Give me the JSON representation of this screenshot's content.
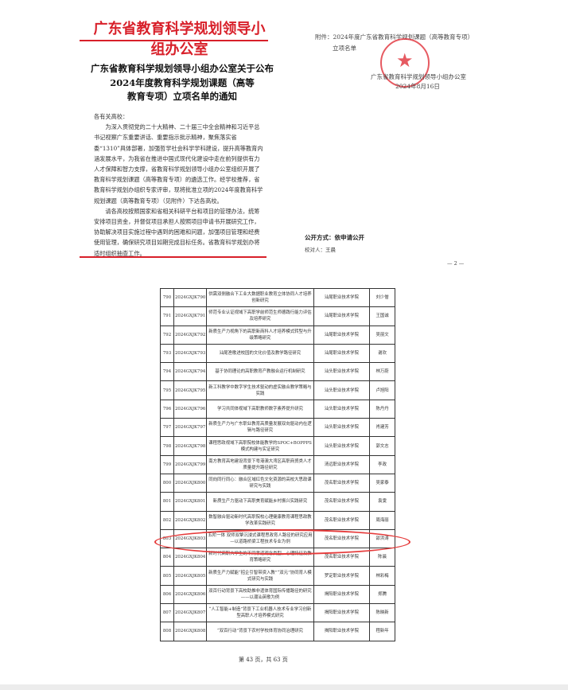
{
  "letterhead": "广东省教育科学规划领导小组办公室",
  "notice_title": [
    "广东省教育科学规划领导小组办公室关于公布",
    "2024年度教育科学规划课题（高等",
    "教育专项）立项名单的通知"
  ],
  "salutation": "各有关高校：",
  "paragraphs": [
    "为深入贯彻党的二十大精神、二十届三中全会精神和习近平总书记视察广东重要讲话、重要指示批示精神，聚焦落实省委“1310”具体部署，加强哲学社会科学学科建设，提升高等教育内涵发展水平，为我省在推进中国式现代化建设中走在前列提供有力人才保障和智力支撑，省教育科学规划领导小组办公室组织开展了教育科学规划课题（高等教育专项）的遴选工作。经学校推荐，省教育科学规划办组织专家评审，现将批准立项的2024年度教育科学规划课题（高等教育专项）（见附件）下达各高校。",
    "请各高校按照国家和省相关科研平台和项目的管理办法，统筹安排项目资金，并督促项目承担人按照项目申请书开展研究工作，协助解决项目实施过程中遇到的困难和问题，加强项目管理和经费使用管理，确保研究项目如期完成目标任务。省教育科学规划办将适时组织抽查工作。"
  ],
  "attachment": [
    "附件：2024年度广东省教育科学规划课题（高等教育专项）",
    "立项名单"
  ],
  "signer": "广东省教育科学规划领导小组办公室",
  "date": "2024年8月16日",
  "disclosure": "公开方式：依申请公开",
  "proofreader": "校对人：王晨",
  "page_num": "— 2 —",
  "rows": [
    [
      "790",
      "2024GXJK790",
      "供需双侧融合下工业大数据职业教育立体协同人才培养创新研究",
      "汕尾职业技术学院",
      "刘少僧"
    ],
    [
      "791",
      "2024GXJK791",
      "师范专业认证视域下高职学前师范生师德践行能力评估及培养研究",
      "汕尾职业技术学院",
      "王国诚"
    ],
    [
      "792",
      "2024GXJK792",
      "新质生产力视角下的高职新商科人才培养模式转型与升级策略研究",
      "汕尾职业技术学院",
      "吴丽文"
    ],
    [
      "793",
      "2024GXJK793",
      "汕尾渔歌进校园的文化价值及教学路径研究",
      "汕尾职业技术学院",
      "谢欢"
    ],
    [
      "794",
      "2024GXJK794",
      "基于协同理论的高职教育产教融合运行机制研究",
      "汕头职业技术学院",
      "林万蔚"
    ],
    [
      "795",
      "2024GXJK795",
      "新工科教学中数字学生技术驱动的虚实融合教学策略与实践",
      "汕头职业技术学院",
      "卢旭阳"
    ],
    [
      "796",
      "2024GXJK796",
      "学习共同体视域下高职教师数字素养提升研究",
      "汕头职业技术学院",
      "陈丹丹"
    ],
    [
      "797",
      "2024GXJK797",
      "新质生产力与广东职业教育高质量发展双向驱动内在逻辑与路径研究",
      "汕头职业技术学院",
      "肖建芳"
    ],
    [
      "798",
      "2024GXJK798",
      "课程思政视域下高职院校体能教学的SPOC+BOPPPS模式构建与实证研究",
      "汕头职业技术学院",
      "郭文志"
    ],
    [
      "799",
      "2024GXJK799",
      "南方教育高地建设背景下粤港澳大湾区高职商贸类人才质量提升路径研究",
      "清远职业技术学院",
      "李政"
    ],
    [
      "800",
      "2024GXJK800",
      "同向同行同心：融合区域红色文化资源的高校大思政课研究与实践",
      "茂名职业技术学院",
      "吴家泰"
    ],
    [
      "801",
      "2024GXJK801",
      "新质生产力驱动下高职美育赋能乡村振兴实践研究",
      "茂名职业技术学院",
      "袁雯"
    ],
    [
      "802",
      "2024GXJK802",
      "数智融合驱动新时代高职院校心理健康教育课程思政教学改革实践研究",
      "茂名职业技术学院",
      "周海丽"
    ],
    [
      "803",
      "2024GXJK803",
      "五阶一体 双师双擎沉浸式课程思政育人路径的研究应用—以道路桥梁工程技术专业为例",
      "茂名职业技术学院",
      "邵洪涛"
    ],
    [
      "804",
      "2024GXJK804",
      "新时代高职大学生的不同孝道观念类型、心理特征及教育策略研究",
      "茂名职业技术学院",
      "陈晨"
    ],
    [
      "805",
      "2024GXJK805",
      "新质生产力赋能“招企引智带资入教”“双元”协同育人模式研究与实践",
      "罗定职业技术学院",
      "林彩梅"
    ],
    [
      "806",
      "2024GXJK806",
      "双百行动背景下高校助推非遗体育国际传播路径的研究——以潮汕英歌为例",
      "揭阳职业技术学院",
      "郑腾"
    ],
    [
      "807",
      "2024GXJK807",
      "“人工智能+制造”背景下工业机器人技术专业学习创新型高职人才培养模式研究",
      "揭阳职业技术学院",
      "陈映新"
    ],
    [
      "808",
      "2024GXJK808",
      "“双百行动”背景下农村学校体育协同治理研究",
      "揭阳职业技术学院",
      "程新年"
    ]
  ],
  "highlighted_row": "803",
  "pager": "第 43 页，共 63 页",
  "colors": {
    "letterhead": "#d8202a",
    "highlight": "#e63b3b"
  }
}
